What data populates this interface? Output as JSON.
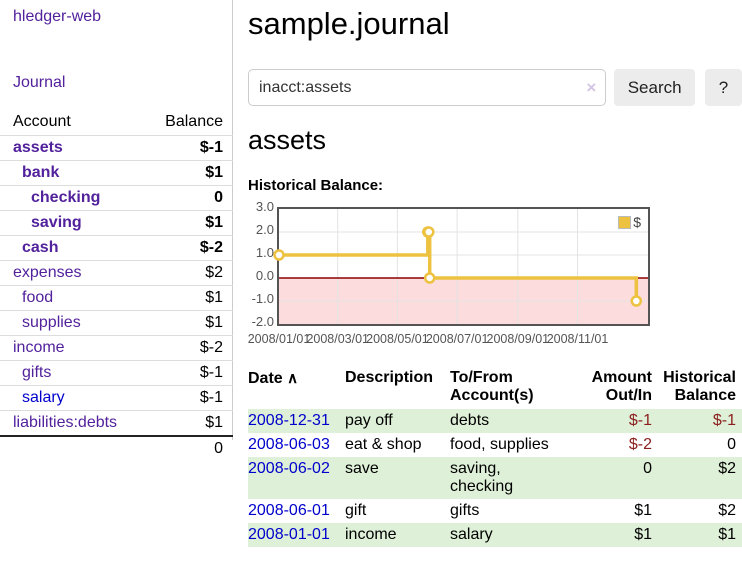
{
  "sidebar": {
    "brand": "hledger-web",
    "nav": [
      {
        "label": "Journal"
      }
    ],
    "accounts_table": {
      "headers": [
        "Account",
        "Balance"
      ],
      "rows": [
        {
          "account": "assets",
          "depth": 1,
          "balance": "$-1",
          "in_filter": true
        },
        {
          "account": "bank",
          "depth": 2,
          "balance": "$1",
          "in_filter": true
        },
        {
          "account": "checking",
          "depth": 3,
          "balance": "0",
          "in_filter": true
        },
        {
          "account": "saving",
          "depth": 3,
          "balance": "$1",
          "in_filter": true
        },
        {
          "account": "cash",
          "depth": 2,
          "balance": "$-2",
          "in_filter": true
        },
        {
          "account": "expenses",
          "depth": 1,
          "balance": "$2",
          "in_filter": false
        },
        {
          "account": "food",
          "depth": 2,
          "balance": "$1",
          "in_filter": false
        },
        {
          "account": "supplies",
          "depth": 2,
          "balance": "$1",
          "in_filter": false
        },
        {
          "account": "income",
          "depth": 1,
          "balance": "$-2",
          "in_filter": false
        },
        {
          "account": "gifts",
          "depth": 2,
          "balance": "$-1",
          "in_filter": false
        },
        {
          "account": "salary",
          "depth": 2,
          "balance": "$-1",
          "in_filter": false,
          "link_color": "blue"
        },
        {
          "account": "liabilities:debts",
          "depth": 1,
          "balance": "$1",
          "in_filter": false
        }
      ],
      "total": "0"
    }
  },
  "header": {
    "title": "sample.journal"
  },
  "search": {
    "value": "inacct:assets",
    "clear_icon": "×",
    "button": "Search",
    "help_button": "?"
  },
  "account_page": {
    "heading": "assets",
    "chart_label": "Historical Balance:"
  },
  "chart_data": {
    "type": "line",
    "title": "Historical Balance:",
    "series": [
      {
        "name": "$",
        "color": "#edc240",
        "step": true,
        "points": [
          {
            "date": "2008-01-01",
            "value": 1
          },
          {
            "date": "2008-06-01",
            "value": 2
          },
          {
            "date": "2008-06-02",
            "value": 2
          },
          {
            "date": "2008-06-03",
            "value": 0
          },
          {
            "date": "2008-12-31",
            "value": -1
          }
        ]
      }
    ],
    "ylim": [
      -2,
      3
    ],
    "ytick_labels": [
      "3.0",
      "2.0",
      "1.0",
      "0.0",
      "-1.0",
      "-2.0"
    ],
    "xticks": [
      {
        "label": "2008/01/01",
        "date": "2008-01-01"
      },
      {
        "label": "2008/03/01",
        "date": "2008-03-01"
      },
      {
        "label": "2008/05/01",
        "date": "2008-05-01"
      },
      {
        "label": "2008/07/01",
        "date": "2008-07-01"
      },
      {
        "label": "2008/09/01",
        "date": "2008-09-01"
      },
      {
        "label": "2008/11/01",
        "date": "2008-11-01"
      }
    ],
    "x_range_days": [
      0,
      377
    ],
    "grid": true,
    "legend_position": "top-right",
    "negative_fill": "#fcdcdc",
    "zero_line_color": "#8b0000"
  },
  "register_table": {
    "sort_icon": "∧",
    "headers": [
      "Date",
      "Description",
      "To/From Account(s)",
      "Amount Out/In",
      "Historical Balance"
    ],
    "rows": [
      {
        "date": "2008-12-31",
        "description": "pay off",
        "accounts": "debts",
        "amount": "$-1",
        "balance": "$-1"
      },
      {
        "date": "2008-06-03",
        "description": "eat & shop",
        "accounts": "food, supplies",
        "amount": "$-2",
        "balance": "0"
      },
      {
        "date": "2008-06-02",
        "description": "save",
        "accounts": "saving,\nchecking",
        "amount": "0",
        "balance": "$2"
      },
      {
        "date": "2008-06-01",
        "description": "gift",
        "accounts": "gifts",
        "amount": "$1",
        "balance": "$2"
      },
      {
        "date": "2008-01-01",
        "description": "income",
        "accounts": "salary",
        "amount": "$1",
        "balance": "$1"
      }
    ]
  }
}
